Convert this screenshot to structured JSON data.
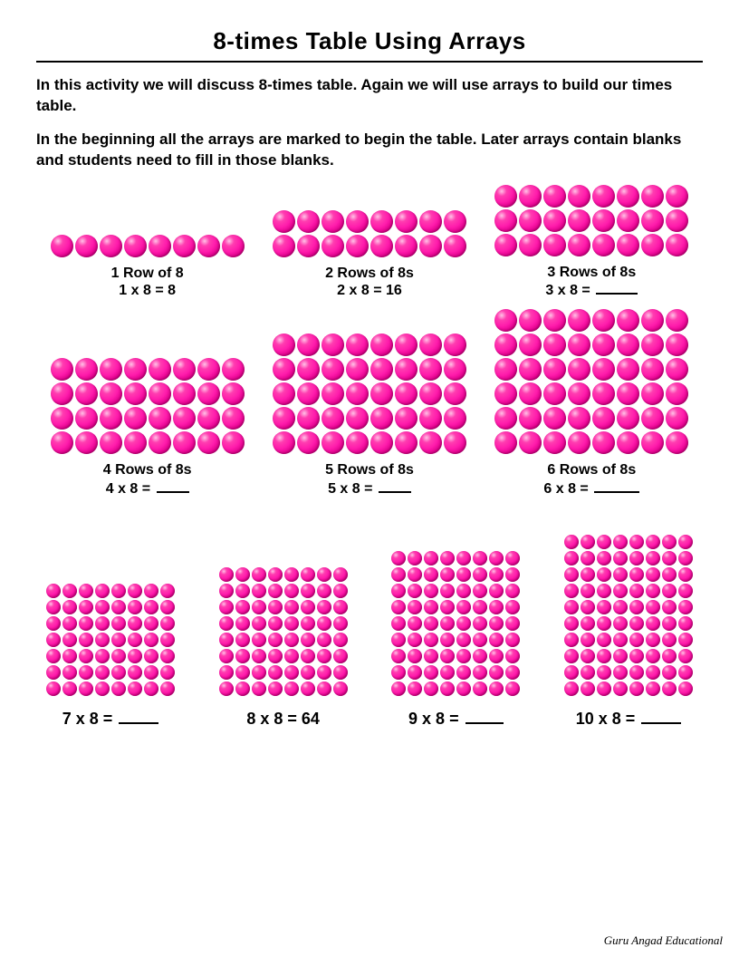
{
  "title": "8-times Table Using Arrays",
  "intro1": "In this activity we will discuss 8-times table. Again we will use arrays to build our times table.",
  "intro2": "In the beginning all the arrays are marked to begin the table. Later arrays contain blanks and students need to fill in those blanks.",
  "footer": "Guru Angad Educational",
  "dot_color_stops": [
    "#ffc2e6",
    "#ff3db0",
    "#ff1cac",
    "#e0008c",
    "#b00070"
  ],
  "columns_per_array": 8,
  "sections": [
    {
      "dot_size": 25,
      "items": [
        {
          "rows": 1,
          "caption": "1 Row of 8",
          "equation": "1 x 8 = 8",
          "blank": false,
          "blank_width": 0
        },
        {
          "rows": 2,
          "caption": "2 Rows of 8s",
          "equation": "2 x 8 = 16",
          "blank": false,
          "blank_width": 0
        },
        {
          "rows": 3,
          "caption": "3 Rows of 8s",
          "equation": "3 x 8 = ",
          "blank": true,
          "blank_width": 46
        }
      ]
    },
    {
      "dot_size": 25,
      "items": [
        {
          "rows": 4,
          "caption": "4 Rows of 8s",
          "equation": "4 x 8 = ",
          "blank": true,
          "blank_width": 36
        },
        {
          "rows": 5,
          "caption": "5 Rows of 8s",
          "equation": "5 x 8 = ",
          "blank": true,
          "blank_width": 36
        },
        {
          "rows": 6,
          "caption": "6 Rows of 8s",
          "equation": "6 x 8 = ",
          "blank": true,
          "blank_width": 50
        }
      ]
    },
    {
      "dot_size": 16,
      "items": [
        {
          "rows": 7,
          "caption": "",
          "equation": "7 x 8 = ",
          "blank": true,
          "blank_width": 44
        },
        {
          "rows": 8,
          "caption": "",
          "equation": "8 x 8 = 64",
          "blank": false,
          "blank_width": 0
        },
        {
          "rows": 9,
          "caption": "",
          "equation": "9 x 8 = ",
          "blank": true,
          "blank_width": 42
        },
        {
          "rows": 10,
          "caption": "",
          "equation": "10 x 8 = ",
          "blank": true,
          "blank_width": 44
        }
      ]
    }
  ]
}
